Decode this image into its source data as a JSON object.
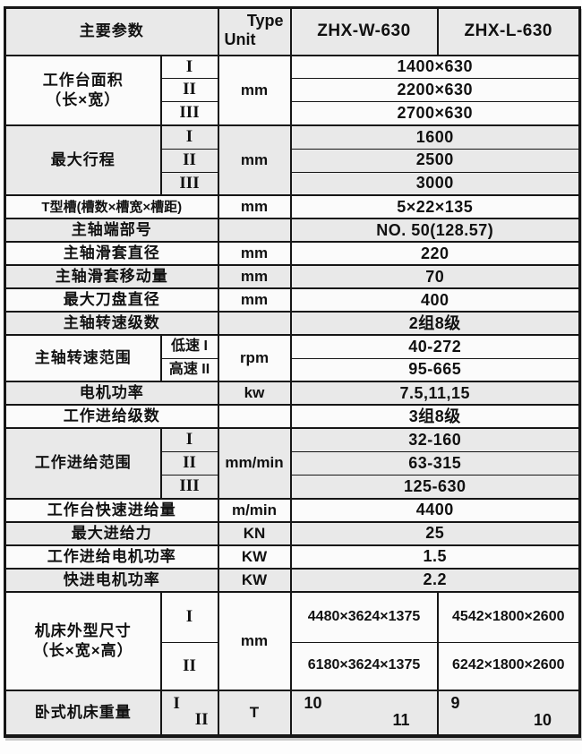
{
  "colors": {
    "border": "#161616",
    "stripe_gray": "#e9e9e9",
    "row_white": "#fbfbfb",
    "text": "#111111"
  },
  "table": {
    "header": {
      "param_title": "主要参数",
      "diag_top": "Type",
      "diag_bottom": "Unit",
      "model_w": "ZHX-W-630",
      "model_l": "ZHX-L-630"
    },
    "rows": [
      {
        "shade": true,
        "group": "header",
        "cells": [
          {
            "kind": "label",
            "cs": 2,
            "text": "主要参数"
          },
          {
            "kind": "diag-du",
            "top": "Type",
            "bottom": "Unit"
          },
          {
            "kind": "model",
            "text": "ZHX-W-630"
          },
          {
            "kind": "model",
            "text": "ZHX-L-630"
          }
        ]
      },
      {
        "shade": false,
        "group": "worktable-area",
        "cells": [
          {
            "kind": "label",
            "rs": 3,
            "lines": [
              "工作台面积",
              "（长×宽）"
            ]
          },
          {
            "kind": "sub",
            "text": "I"
          },
          {
            "kind": "unit",
            "rs": 3,
            "text": "mm"
          },
          {
            "kind": "value",
            "cs": 2,
            "text": "1400×630"
          }
        ]
      },
      {
        "shade": false,
        "thin": true,
        "cells": [
          {
            "kind": "sub",
            "text": "II"
          },
          {
            "kind": "value",
            "cs": 2,
            "text": "2200×630"
          }
        ]
      },
      {
        "shade": false,
        "thin": true,
        "cells": [
          {
            "kind": "sub",
            "text": "III"
          },
          {
            "kind": "value",
            "cs": 2,
            "text": "2700×630"
          }
        ]
      },
      {
        "shade": true,
        "group": "max-travel",
        "cells": [
          {
            "kind": "label",
            "rs": 3,
            "lines": [
              "最大行程"
            ]
          },
          {
            "kind": "sub",
            "text": "I"
          },
          {
            "kind": "unit",
            "rs": 3,
            "text": "mm"
          },
          {
            "kind": "value",
            "cs": 2,
            "text": "1600"
          }
        ]
      },
      {
        "shade": true,
        "thin": true,
        "cells": [
          {
            "kind": "sub",
            "text": "II"
          },
          {
            "kind": "value",
            "cs": 2,
            "text": "2500"
          }
        ]
      },
      {
        "shade": true,
        "thin": true,
        "cells": [
          {
            "kind": "sub",
            "text": "III"
          },
          {
            "kind": "value",
            "cs": 2,
            "text": "3000"
          }
        ]
      },
      {
        "shade": false,
        "group": "t-slot",
        "cells": [
          {
            "kind": "label",
            "cs": 2,
            "text": "T型槽(槽数×槽宽×槽距)"
          },
          {
            "kind": "unit",
            "text": "mm"
          },
          {
            "kind": "value",
            "cs": 2,
            "text": "5×22×135"
          }
        ]
      },
      {
        "shade": true,
        "group": "spindle-nose",
        "cells": [
          {
            "kind": "label",
            "cs": 2,
            "text": "主轴端部号"
          },
          {
            "kind": "unit",
            "text": ""
          },
          {
            "kind": "value",
            "cs": 2,
            "text": "NO. 50(128.57)"
          }
        ]
      },
      {
        "shade": false,
        "group": "sleeve-diameter",
        "cells": [
          {
            "kind": "label",
            "cs": 2,
            "text": "主轴滑套直径"
          },
          {
            "kind": "unit",
            "text": "mm"
          },
          {
            "kind": "value",
            "cs": 2,
            "text": "220"
          }
        ]
      },
      {
        "shade": true,
        "group": "sleeve-travel",
        "cells": [
          {
            "kind": "label",
            "cs": 2,
            "text": "主轴滑套移动量"
          },
          {
            "kind": "unit",
            "text": "mm"
          },
          {
            "kind": "value",
            "cs": 2,
            "text": "70"
          }
        ]
      },
      {
        "shade": false,
        "group": "max-cutter-diameter",
        "cells": [
          {
            "kind": "label",
            "cs": 2,
            "text": "最大刀盘直径"
          },
          {
            "kind": "unit",
            "text": "mm"
          },
          {
            "kind": "value",
            "cs": 2,
            "text": "400"
          }
        ]
      },
      {
        "shade": true,
        "group": "spindle-speed-steps",
        "cells": [
          {
            "kind": "label",
            "cs": 2,
            "text": "主轴转速级数"
          },
          {
            "kind": "unit",
            "text": ""
          },
          {
            "kind": "value",
            "cs": 2,
            "text": "2组8级"
          }
        ]
      },
      {
        "shade": false,
        "group": "spindle-speed-range",
        "cells": [
          {
            "kind": "label",
            "rs": 2,
            "lines": [
              "主轴转速范围"
            ]
          },
          {
            "kind": "sublabel",
            "text": "低速 I"
          },
          {
            "kind": "unit",
            "rs": 2,
            "text": "rpm"
          },
          {
            "kind": "value",
            "cs": 2,
            "text": "40-272"
          }
        ]
      },
      {
        "shade": false,
        "thin": true,
        "cells": [
          {
            "kind": "sublabel",
            "text": "高速 II"
          },
          {
            "kind": "value",
            "cs": 2,
            "text": "95-665"
          }
        ]
      },
      {
        "shade": true,
        "group": "motor-power",
        "cells": [
          {
            "kind": "label",
            "cs": 2,
            "text": "电机功率"
          },
          {
            "kind": "unit",
            "text": "kw"
          },
          {
            "kind": "value",
            "cs": 2,
            "text": "7.5,11,15"
          }
        ]
      },
      {
        "shade": false,
        "group": "feed-steps",
        "cells": [
          {
            "kind": "label",
            "cs": 2,
            "text": "工作进给级数"
          },
          {
            "kind": "unit",
            "text": ""
          },
          {
            "kind": "value",
            "cs": 2,
            "text": "3组8级"
          }
        ]
      },
      {
        "shade": true,
        "group": "feed-range",
        "cells": [
          {
            "kind": "label",
            "rs": 3,
            "lines": [
              "工作进给范围"
            ]
          },
          {
            "kind": "sub",
            "text": "I"
          },
          {
            "kind": "unit",
            "rs": 3,
            "text": "mm/min"
          },
          {
            "kind": "value",
            "cs": 2,
            "text": "32-160"
          }
        ]
      },
      {
        "shade": true,
        "thin": true,
        "cells": [
          {
            "kind": "sub",
            "text": "II"
          },
          {
            "kind": "value",
            "cs": 2,
            "text": "63-315"
          }
        ]
      },
      {
        "shade": true,
        "thin": true,
        "cells": [
          {
            "kind": "sub",
            "text": "III"
          },
          {
            "kind": "value",
            "cs": 2,
            "text": "125-630"
          }
        ]
      },
      {
        "shade": false,
        "group": "rapid-feed",
        "cells": [
          {
            "kind": "label",
            "cs": 2,
            "text": "工作台快速进给量"
          },
          {
            "kind": "unit",
            "text": "m/min"
          },
          {
            "kind": "value",
            "cs": 2,
            "text": "4400"
          }
        ]
      },
      {
        "shade": true,
        "group": "max-feed-force",
        "cells": [
          {
            "kind": "label",
            "cs": 2,
            "text": "最大进给力"
          },
          {
            "kind": "unit",
            "text": "KN"
          },
          {
            "kind": "value",
            "cs": 2,
            "text": "25"
          }
        ]
      },
      {
        "shade": false,
        "group": "feed-motor-power",
        "cells": [
          {
            "kind": "label",
            "cs": 2,
            "text": "工作进给电机功率"
          },
          {
            "kind": "unit",
            "text": "KW"
          },
          {
            "kind": "value",
            "cs": 2,
            "text": "1.5"
          }
        ]
      },
      {
        "shade": true,
        "group": "rapid-motor-power",
        "cells": [
          {
            "kind": "label",
            "cs": 2,
            "text": "快进电机功率"
          },
          {
            "kind": "unit",
            "text": "KW"
          },
          {
            "kind": "value",
            "cs": 2,
            "text": "2.2"
          }
        ]
      },
      {
        "shade": false,
        "group": "machine-dimensions",
        "cells": [
          {
            "kind": "label",
            "rs": 2,
            "lines": [
              "机床外型尺寸",
              "（长×宽×高）"
            ]
          },
          {
            "kind": "sub",
            "text": "I"
          },
          {
            "kind": "unit",
            "rs": 2,
            "text": "mm"
          },
          {
            "kind": "value",
            "dim": true,
            "text": "4480×3624×1375"
          },
          {
            "kind": "value",
            "dim": true,
            "text": "4542×1800×2600"
          }
        ]
      },
      {
        "shade": false,
        "thin": true,
        "cells": [
          {
            "kind": "sub",
            "text": "II"
          },
          {
            "kind": "value",
            "dim": true,
            "text": "6180×3624×1375"
          },
          {
            "kind": "value",
            "dim": true,
            "text": "6242×1800×2600"
          }
        ]
      },
      {
        "shade": true,
        "group": "horizontal-machine-weight",
        "cells": [
          {
            "kind": "label",
            "text": "卧式机床重量"
          },
          {
            "kind": "diag-ud",
            "romans": true,
            "top": "I",
            "bottom": "II"
          },
          {
            "kind": "unit",
            "text": "T"
          },
          {
            "kind": "diag-ud",
            "wide": true,
            "top": "10",
            "bottom": "11"
          },
          {
            "kind": "diag-ud",
            "wide": true,
            "top": "9",
            "bottom": "10"
          }
        ]
      }
    ]
  }
}
